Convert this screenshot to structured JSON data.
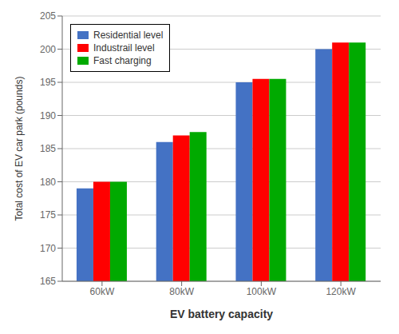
{
  "chart_data": {
    "type": "bar",
    "xlabel": "EV battery capacity",
    "ylabel": "Total cost of EV car park (pounds)",
    "categories": [
      "60kW",
      "80kW",
      "100kW",
      "120kW"
    ],
    "series": [
      {
        "name": "Residential level",
        "color": "#4472C4",
        "values": [
          179,
          186,
          195,
          200
        ]
      },
      {
        "name": "Industrail level",
        "color": "#FF0000",
        "values": [
          180,
          187,
          195.5,
          201
        ]
      },
      {
        "name": "Fast charging",
        "color": "#00AA00",
        "values": [
          180,
          187.5,
          195.5,
          201
        ]
      }
    ],
    "ylim": [
      165,
      205
    ],
    "yticks": [
      165,
      170,
      175,
      180,
      185,
      190,
      195,
      200,
      205
    ],
    "grid": true,
    "legend": "upper left"
  }
}
